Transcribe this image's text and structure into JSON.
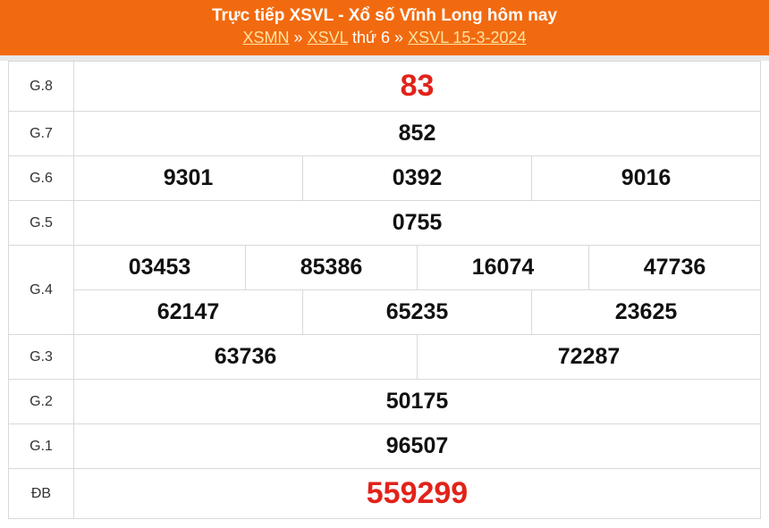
{
  "header": {
    "title": "Trực tiếp XSVL - Xổ số Vĩnh Long hôm nay",
    "crumbs": [
      "XSMN",
      "»",
      "XSVL",
      "thứ 6 »",
      "XSVL 15-3-2024"
    ]
  },
  "prizes": [
    {
      "label": "G.8",
      "numbers": [
        "83"
      ]
    },
    {
      "label": "G.7",
      "numbers": [
        "852"
      ]
    },
    {
      "label": "G.6",
      "numbers": [
        "9301",
        "0392",
        "9016"
      ]
    },
    {
      "label": "G.5",
      "numbers": [
        "0755"
      ]
    },
    {
      "label": "G.4",
      "numbers": [
        "03453",
        "85386",
        "16074",
        "47736",
        "62147",
        "65235",
        "23625"
      ]
    },
    {
      "label": "G.3",
      "numbers": [
        "63736",
        "72287"
      ]
    },
    {
      "label": "G.2",
      "numbers": [
        "50175"
      ]
    },
    {
      "label": "G.1",
      "numbers": [
        "96507"
      ]
    },
    {
      "label": "ĐB",
      "numbers": [
        "559299"
      ]
    }
  ],
  "colors": {
    "header": "#f26a0f",
    "highlight": "#e2231a"
  }
}
